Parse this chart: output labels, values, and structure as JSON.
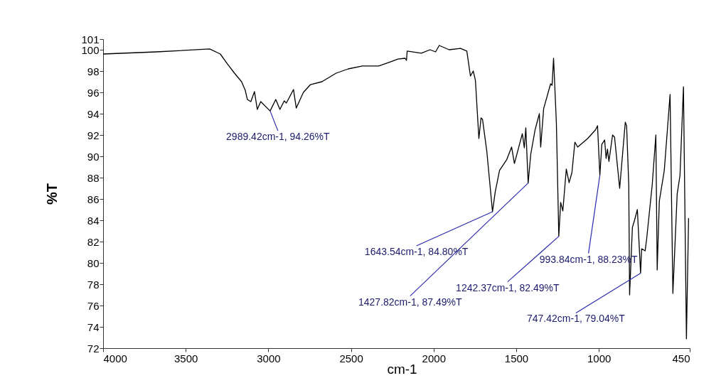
{
  "chart_data": {
    "type": "line",
    "xlabel": "cm-1",
    "ylabel": "%T",
    "xlim": [
      4000,
      450
    ],
    "xticks": [
      4000,
      3500,
      3000,
      2500,
      2000,
      1500,
      1000,
      450
    ],
    "ylim": [
      72,
      101
    ],
    "yticks": [
      72,
      74,
      76,
      78,
      80,
      82,
      84,
      86,
      88,
      90,
      92,
      94,
      96,
      98,
      100,
      101
    ],
    "grid": false,
    "marker": "none",
    "line_style": "solid",
    "series": [
      {
        "color": "#000000",
        "x": [
          4000,
          3678,
          3355,
          3291,
          3248,
          3205,
          3162,
          3140,
          3127,
          3106,
          3084,
          3067,
          3046,
          2989.42,
          2955,
          2930,
          2904,
          2891,
          2848,
          2831,
          2788,
          2745,
          2676,
          2590,
          2517,
          2431,
          2332,
          2259,
          2216,
          2173,
          2164,
          2160,
          2074,
          2022,
          1988,
          1966,
          1906,
          1837,
          1799,
          1777,
          1760,
          1747,
          1726,
          1713,
          1704,
          1678,
          1643.54,
          1627,
          1601,
          1558,
          1528,
          1511,
          1463,
          1451,
          1442,
          1427.82,
          1412,
          1386,
          1360,
          1352,
          1334,
          1292,
          1283,
          1274,
          1257,
          1242.37,
          1231,
          1218,
          1197,
          1180,
          1163,
          1145,
          1128,
          1068,
          1021,
          1008,
          993.84,
          982,
          965,
          956,
          948,
          939,
          917,
          905,
          874,
          840,
          832,
          819,
          814,
          797,
          784,
          767,
          747.42,
          741,
          720,
          711,
          677,
          655,
          647,
          634,
          604,
          569,
          552,
          526,
          509,
          488,
          470,
          457
        ],
        "values": [
          99.6,
          99.8,
          100.07,
          99.6,
          98.67,
          97.8,
          97.0,
          96.2,
          95.33,
          95.13,
          96.07,
          94.4,
          95.13,
          94.26,
          95.33,
          94.4,
          95.2,
          95.0,
          96.27,
          94.53,
          96.0,
          96.73,
          97.0,
          97.8,
          98.2,
          98.47,
          98.47,
          98.87,
          99.13,
          99.2,
          99.0,
          99.87,
          99.67,
          100.0,
          99.8,
          100.4,
          100.0,
          100.13,
          99.87,
          97.53,
          98.0,
          97.13,
          91.67,
          93.6,
          93.47,
          90.47,
          84.8,
          86.67,
          88.67,
          89.67,
          90.87,
          89.33,
          92.13,
          90.8,
          92.67,
          87.49,
          90.2,
          92.47,
          94.0,
          90.87,
          94.47,
          96.8,
          96.67,
          99.2,
          93.13,
          82.49,
          85.67,
          84.87,
          88.8,
          87.53,
          88.47,
          91.33,
          90.87,
          91.67,
          92.47,
          92.87,
          88.23,
          91.13,
          91.53,
          89.8,
          90.67,
          89.53,
          92.0,
          91.8,
          87.0,
          93.2,
          92.87,
          87.33,
          77.0,
          83.33,
          84.0,
          85.0,
          79.04,
          81.33,
          81.13,
          82.2,
          87.33,
          92.0,
          79.33,
          85.8,
          88.67,
          95.8,
          77.13,
          86.47,
          88.2,
          96.53,
          72.87,
          84.2
        ]
      }
    ],
    "annotations": [
      {
        "text": "2989.42cm-1, 94.26%T",
        "x": 2989.42,
        "y": 94.26
      },
      {
        "text": "1643.54cm-1, 84.80%T",
        "x": 1643.54,
        "y": 84.8
      },
      {
        "text": "1427.82cm-1, 87.49%T",
        "x": 1427.82,
        "y": 87.49
      },
      {
        "text": "1242.37cm-1, 82.49%T",
        "x": 1242.37,
        "y": 82.49
      },
      {
        "text": "993.84cm-1, 88.23%T",
        "x": 993.84,
        "y": 88.23
      },
      {
        "text": "747.42cm-1, 79.04%T",
        "x": 747.42,
        "y": 79.04
      }
    ]
  }
}
